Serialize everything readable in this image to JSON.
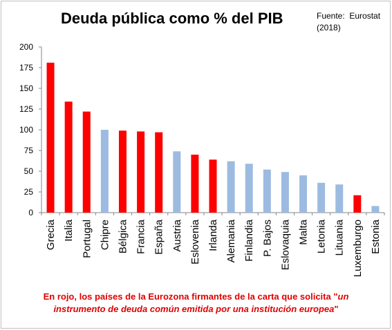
{
  "chart_data": {
    "type": "bar",
    "title": "Deuda pública como % del PIB",
    "source_line1": "Fuente:  Eurostat",
    "source_line2": "(2018)",
    "xlabel": "",
    "ylabel": "",
    "ylim": [
      0,
      200
    ],
    "yticks": [
      0,
      25,
      50,
      75,
      100,
      125,
      150,
      175,
      200
    ],
    "grid": false,
    "categories": [
      "Grecia",
      "Italia",
      "Portugal",
      "Chipre",
      "Bélgica",
      "Francia",
      "España",
      "Austria",
      "Eslovenia",
      "Irlanda",
      "Alemania",
      "Finlandia",
      "P. Bajos",
      "Eslovaquia",
      "Malta",
      "Letonia",
      "Lituania",
      "Luxemburgo",
      "Estonia"
    ],
    "values": [
      181,
      134,
      122,
      100,
      99,
      98,
      97,
      74,
      70,
      64,
      62,
      59,
      52,
      49,
      45,
      36,
      34,
      21,
      8
    ],
    "signatory": [
      true,
      true,
      true,
      false,
      true,
      true,
      true,
      false,
      true,
      true,
      false,
      false,
      false,
      false,
      false,
      false,
      false,
      true,
      false
    ],
    "colors": {
      "signatory": "#ff0000",
      "other": "#9dbbe0"
    },
    "note_line1": "En rojo, los países de la Eurozona firmantes de la carta  que solicita \"",
    "note_line1_italic": "un",
    "note_line2": "instrumento de deuda común emitida por una institución europea",
    "note_line2_end": "\""
  }
}
